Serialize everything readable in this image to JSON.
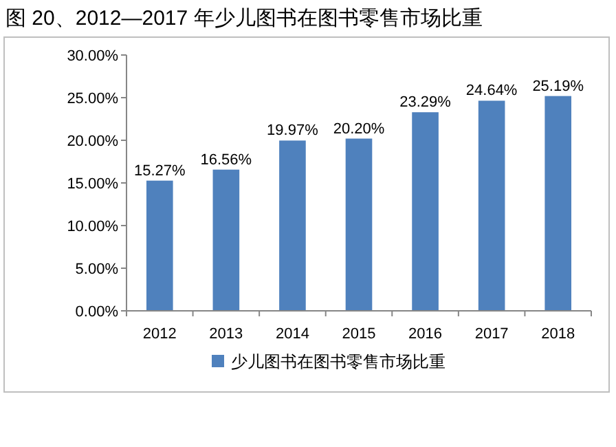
{
  "chart_data": {
    "type": "bar",
    "title": "图 20、2012—2017 年少儿图书在图书零售市场比重",
    "categories": [
      "2012",
      "2013",
      "2014",
      "2015",
      "2016",
      "2017",
      "2018"
    ],
    "series": [
      {
        "name": "少儿图书在图书零售市场比重",
        "color": "#4f81bd",
        "values": [
          15.27,
          16.56,
          19.97,
          20.2,
          23.29,
          24.64,
          25.19
        ]
      }
    ],
    "value_labels": [
      "15.27%",
      "16.56%",
      "19.97%",
      "20.20%",
      "23.29%",
      "24.64%",
      "25.19%"
    ],
    "ylim": [
      0,
      30
    ],
    "yticks": [
      {
        "value": 0,
        "label": "0.00%"
      },
      {
        "value": 5,
        "label": "5.00%"
      },
      {
        "value": 10,
        "label": "10.00%"
      },
      {
        "value": 15,
        "label": "15.00%"
      },
      {
        "value": 20,
        "label": "20.00%"
      },
      {
        "value": 25,
        "label": "25.00%"
      },
      {
        "value": 30,
        "label": "30.00%"
      }
    ],
    "grid": false,
    "legend": "bottom"
  }
}
